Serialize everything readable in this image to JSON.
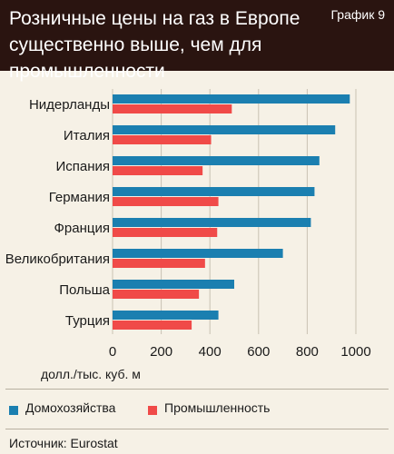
{
  "header": {
    "title": "Розничные цены на газ в Европе существенно выше, чем для промышленности",
    "chart_label": "График 9"
  },
  "source": "Источник:  Eurostat",
  "colors": {
    "household": "#1b7fb0",
    "industry": "#f04a48",
    "header_bg": "#2a1410",
    "background": "#f6f1e6",
    "grid": "#c9c2b3"
  },
  "chart_data": {
    "type": "bar",
    "orientation": "horizontal",
    "categories": [
      "Нидерланды",
      "Италия",
      "Испания",
      "Германия",
      "Франция",
      "Великобритания",
      "Польша",
      "Турция"
    ],
    "series": [
      {
        "name": "Домохозяйства",
        "values": [
          975,
          915,
          850,
          830,
          815,
          700,
          500,
          435
        ]
      },
      {
        "name": "Промышленность",
        "values": [
          490,
          405,
          370,
          435,
          430,
          380,
          355,
          325
        ]
      }
    ],
    "xlabel": "долл./тыс. куб. м",
    "xticks": [
      "0",
      "200",
      "400",
      "600",
      "800",
      "1000"
    ],
    "xlim": [
      0,
      1000
    ],
    "grid": true,
    "legend_position": "bottom"
  }
}
